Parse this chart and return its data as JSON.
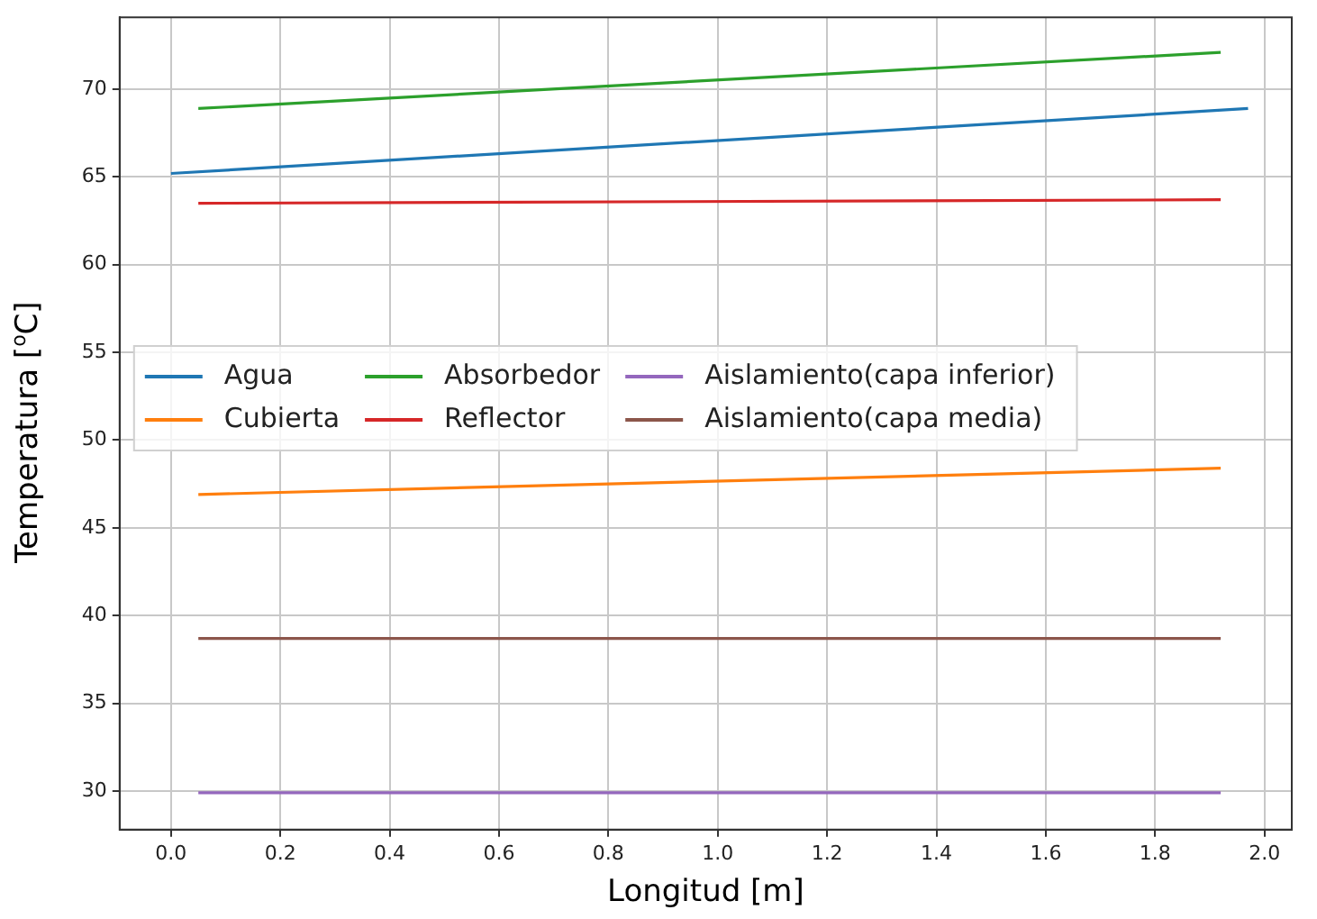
{
  "chart_data": {
    "type": "line",
    "xlabel": "Longitud [m]",
    "ylabel": "Temperatura [$^{o}$C]",
    "xlim": [
      -0.094,
      2.05
    ],
    "xticks": [
      {
        "value": 0,
        "label": "0.0"
      },
      {
        "value": 0.2,
        "label": "0.2"
      },
      {
        "value": 0.4,
        "label": "0.4"
      },
      {
        "value": 0.6,
        "label": "0.6"
      },
      {
        "value": 0.8,
        "label": "0.8"
      },
      {
        "value": 1,
        "label": "1.0"
      },
      {
        "value": 1.2,
        "label": "1.2"
      },
      {
        "value": 1.4,
        "label": "1.4"
      },
      {
        "value": 1.6,
        "label": "1.6"
      },
      {
        "value": 1.8,
        "label": "1.8"
      },
      {
        "value": 2,
        "label": "2.0"
      }
    ],
    "ylim": [
      27.8,
      74.1
    ],
    "yticks": [
      30,
      35,
      40,
      45,
      50,
      55,
      60,
      65,
      70
    ],
    "grid": true,
    "legend": "left",
    "marker": "none",
    "line_style": "solid",
    "series": [
      {
        "name": "Agua",
        "color": "#1f77b4",
        "x": [
          0,
          1.97
        ],
        "values": [
          65.2,
          68.9
        ]
      },
      {
        "name": "Cubierta",
        "color": "#ff7f0e",
        "x": [
          0.05,
          1.92
        ],
        "values": [
          46.9,
          48.4
        ]
      },
      {
        "name": "Absorbedor",
        "color": "#2ca02c",
        "x": [
          0.05,
          1.92
        ],
        "values": [
          68.9,
          72.1
        ]
      },
      {
        "name": "Reflector",
        "color": "#d62728",
        "x": [
          0.05,
          1.92
        ],
        "values": [
          63.5,
          63.7
        ]
      },
      {
        "name": "Aislamiento(capa inferior)",
        "color": "#9467bd",
        "x": [
          0.05,
          1.92
        ],
        "values": [
          29.9,
          29.9
        ]
      },
      {
        "name": "Aislamiento(capa media)",
        "color": "#8c564b",
        "x": [
          0.05,
          1.92
        ],
        "values": [
          38.7,
          38.7
        ]
      }
    ]
  }
}
